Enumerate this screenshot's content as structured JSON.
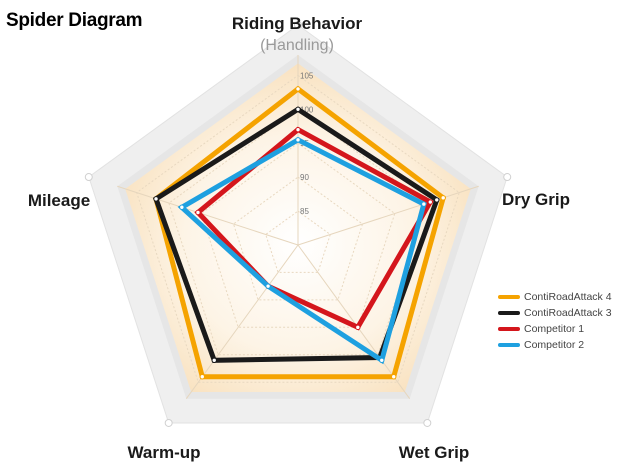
{
  "title": "Spider Diagram",
  "chart_data": {
    "type": "radar",
    "axes": [
      {
        "name": "Riding Behavior",
        "sub": "(Handling)"
      },
      {
        "name": "Dry Grip",
        "sub": ""
      },
      {
        "name": "Wet Grip",
        "sub": ""
      },
      {
        "name": "Warm-up",
        "sub": ""
      },
      {
        "name": "Mileage",
        "sub": ""
      }
    ],
    "ticks": [
      85,
      90,
      95,
      100,
      105
    ],
    "range": [
      80,
      108
    ],
    "series": [
      {
        "name": "ContiRoadAttack 4",
        "color": "#f5a300",
        "values": [
          103,
          102.5,
          104,
          104,
          102
        ]
      },
      {
        "name": "ContiRoadAttack 3",
        "color": "#1a1a1a",
        "values": [
          100,
          101.5,
          100.5,
          101,
          102
        ]
      },
      {
        "name": "Competitor 1",
        "color": "#d4161c",
        "values": [
          97,
          100.5,
          95,
          87.5,
          95.5
        ]
      },
      {
        "name": "Competitor 2",
        "color": "#1ea0e0",
        "values": [
          95.5,
          99.5,
          101,
          87.5,
          98
        ]
      }
    ]
  }
}
